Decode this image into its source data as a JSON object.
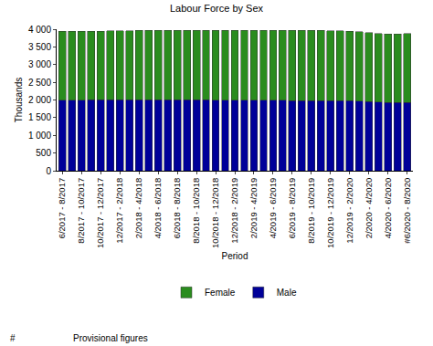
{
  "chart_data": {
    "type": "bar",
    "title": "Labour Force by Sex",
    "x_label": "Period",
    "y_label": "Thousands",
    "stacked": true,
    "grid": false,
    "legend": "bottom",
    "categories": [
      "6/2017 - 8/2017",
      null,
      "8/2017 - 10/2017",
      null,
      "10/2017 - 12/2017",
      null,
      "12/2017 - 2/2018",
      null,
      "2/2018 - 4/2018",
      null,
      "4/2018 - 6/2018",
      null,
      "6/2018 - 8/2018",
      null,
      "8/2018 - 10/2018",
      null,
      "10/2018 - 12/2018",
      null,
      "12/2018 - 2/2019",
      null,
      "2/2019 - 4/2019",
      null,
      "4/2019 - 6/2019",
      null,
      "6/2019 - 8/2019",
      null,
      "8/2019 - 10/2019",
      null,
      "10/2019 - 12/2019",
      null,
      "12/2019 - 2/2020",
      null,
      "2/2020 - 4/2020",
      null,
      "4/2020 - 6/2020",
      null,
      "#6/2020 - 8/2020"
    ],
    "series": [
      {
        "name": "Male",
        "color": "#000099",
        "values": [
          1998,
          1999,
          2000,
          2001,
          2002,
          2003,
          2004,
          2004,
          2005,
          2005,
          2006,
          2006,
          2005,
          2004,
          2003,
          2002,
          2000,
          1998,
          1996,
          1994,
          1992,
          1990,
          1989,
          1988,
          1987,
          1987,
          1986,
          1985,
          1984,
          1982,
          1978,
          1970,
          1958,
          1942,
          1928,
          1924,
          1932
        ]
      },
      {
        "name": "Female",
        "color": "#2a8c1e",
        "values": [
          1938,
          1940,
          1941,
          1943,
          1946,
          1950,
          1953,
          1956,
          1958,
          1961,
          1962,
          1963,
          1964,
          1965,
          1966,
          1967,
          1968,
          1970,
          1972,
          1973,
          1974,
          1975,
          1976,
          1977,
          1977,
          1978,
          1978,
          1978,
          1977,
          1975,
          1970,
          1962,
          1950,
          1940,
          1932,
          1936,
          1950
        ]
      }
    ],
    "ylim": [
      0,
      4000
    ],
    "yticks": [
      0,
      500,
      {
        "value": 1000,
        "label": "1 000"
      },
      {
        "value": 1500,
        "label": "1 500"
      },
      {
        "value": 2000,
        "label": "2 000"
      },
      {
        "value": 2500,
        "label": "2 500"
      },
      {
        "value": 3000,
        "label": "3 000"
      },
      {
        "value": 3500,
        "label": "3 500"
      },
      {
        "value": 4000,
        "label": "4 000"
      }
    ],
    "annotations": [
      "#",
      "Provisional figures"
    ]
  }
}
